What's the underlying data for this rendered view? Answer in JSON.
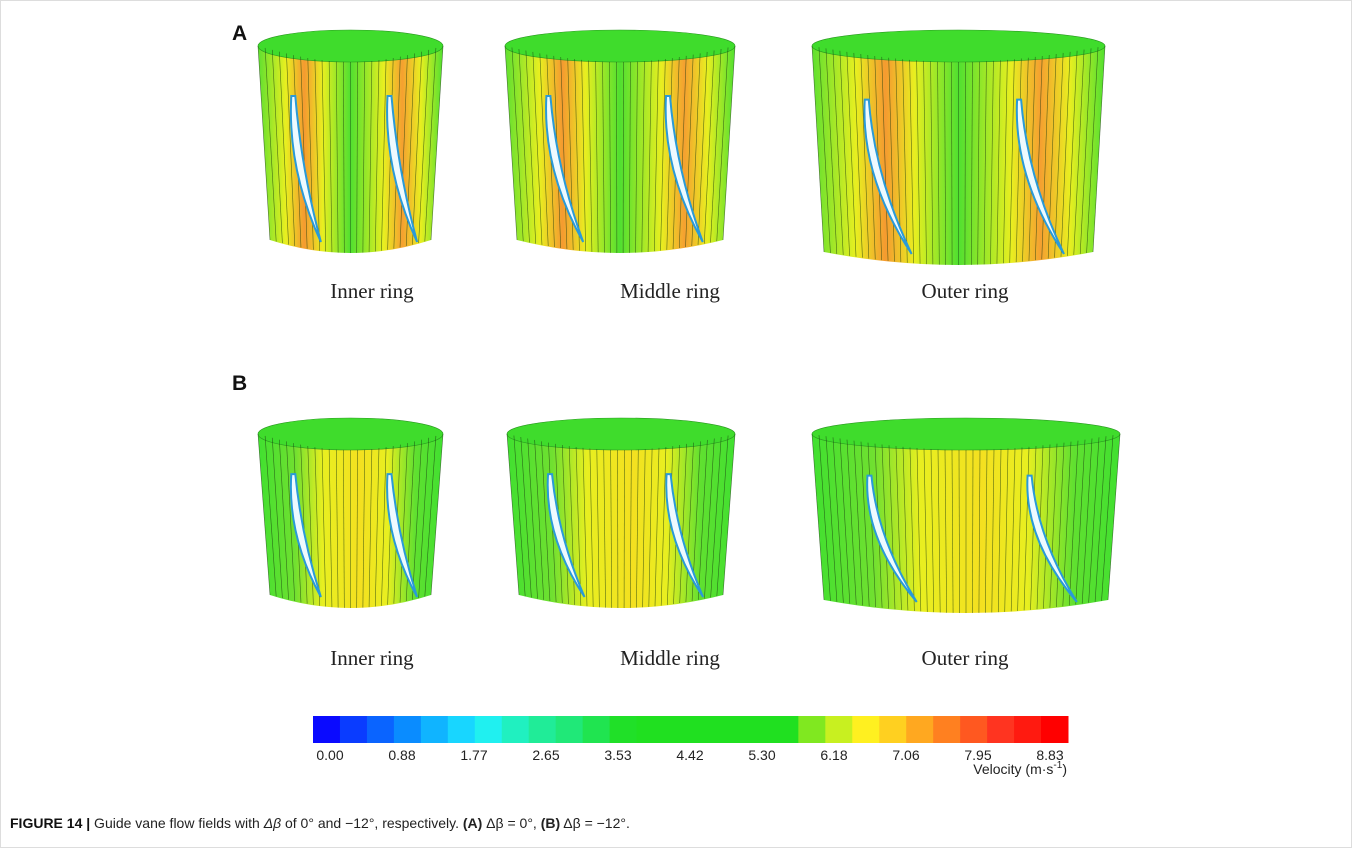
{
  "panels": [
    {
      "label": "A",
      "rings": [
        "Inner ring",
        "Middle ring",
        "Outer ring"
      ]
    },
    {
      "label": "B",
      "rings": [
        "Inner ring",
        "Middle ring",
        "Outer ring"
      ]
    }
  ],
  "colorbar": {
    "ticks": [
      "0.00",
      "0.88",
      "1.77",
      "2.65",
      "3.53",
      "4.42",
      "5.30",
      "6.18",
      "7.06",
      "7.95",
      "8.83"
    ],
    "unit_text": "Velocity (m·s",
    "unit_sup": "-1",
    "unit_close": ")",
    "colors": [
      "#0a0aff",
      "#0a3cff",
      "#0a64ff",
      "#0a8cff",
      "#10b4ff",
      "#18d6ff",
      "#20f0f0",
      "#20f0c0",
      "#20ec98",
      "#20e878",
      "#20e450",
      "#20e028",
      "#20e020",
      "#20e020",
      "#20e020",
      "#20e020",
      "#20e020",
      "#20e020",
      "#80e820",
      "#c8f020",
      "#fff020",
      "#ffd020",
      "#ffa820",
      "#ff8020",
      "#ff5820",
      "#ff3420",
      "#ff1a10",
      "#ff0000"
    ]
  },
  "caption": {
    "label": "FIGURE 14 |",
    "text1": " Guide vane flow fields with ",
    "italic": "Δβ",
    "text2": " of 0° and −12°, respectively. ",
    "a": "(A)",
    "text3": " Δβ = 0°, ",
    "b": "(B)",
    "text4": " Δβ = −12°."
  }
}
